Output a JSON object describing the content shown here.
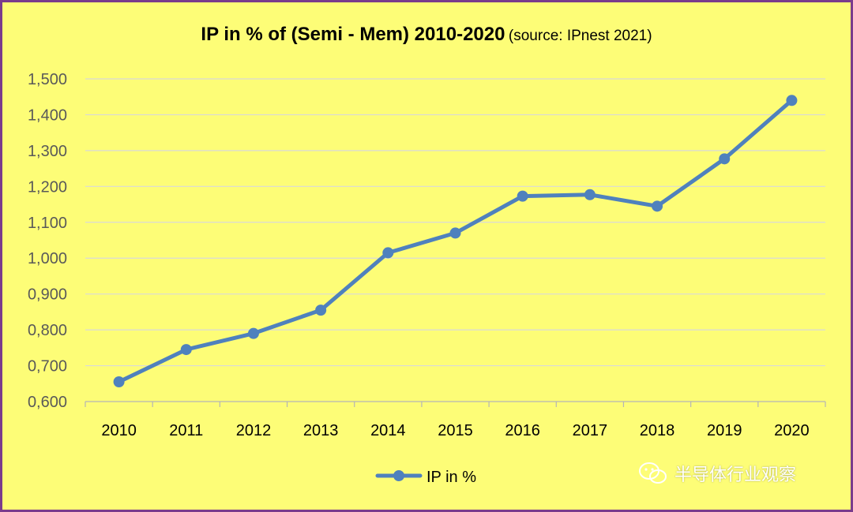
{
  "chart_data": {
    "type": "line",
    "title": "IP in % of (Semi - Mem) 2010-2020",
    "subtitle": "(source: IPnest 2021)",
    "categories": [
      "2010",
      "2011",
      "2012",
      "2013",
      "2014",
      "2015",
      "2016",
      "2017",
      "2018",
      "2019",
      "2020"
    ],
    "series": [
      {
        "name": "IP in %",
        "values": [
          0.655,
          0.745,
          0.79,
          0.855,
          1.015,
          1.07,
          1.173,
          1.177,
          1.145,
          1.277,
          1.44
        ],
        "color": "#4f81bd"
      }
    ],
    "yticks": [
      "0,600",
      "0,700",
      "0,800",
      "0,900",
      "1,000",
      "1,100",
      "1,200",
      "1,300",
      "1,400",
      "1,500"
    ],
    "ylim": [
      0.6,
      1.5
    ],
    "grid": true,
    "legend_position": "bottom",
    "background_color": "#fdfd77",
    "border_color": "#7a3c8c"
  },
  "watermark": {
    "text": "半导体行业观察",
    "icon": "wechat-icon"
  }
}
